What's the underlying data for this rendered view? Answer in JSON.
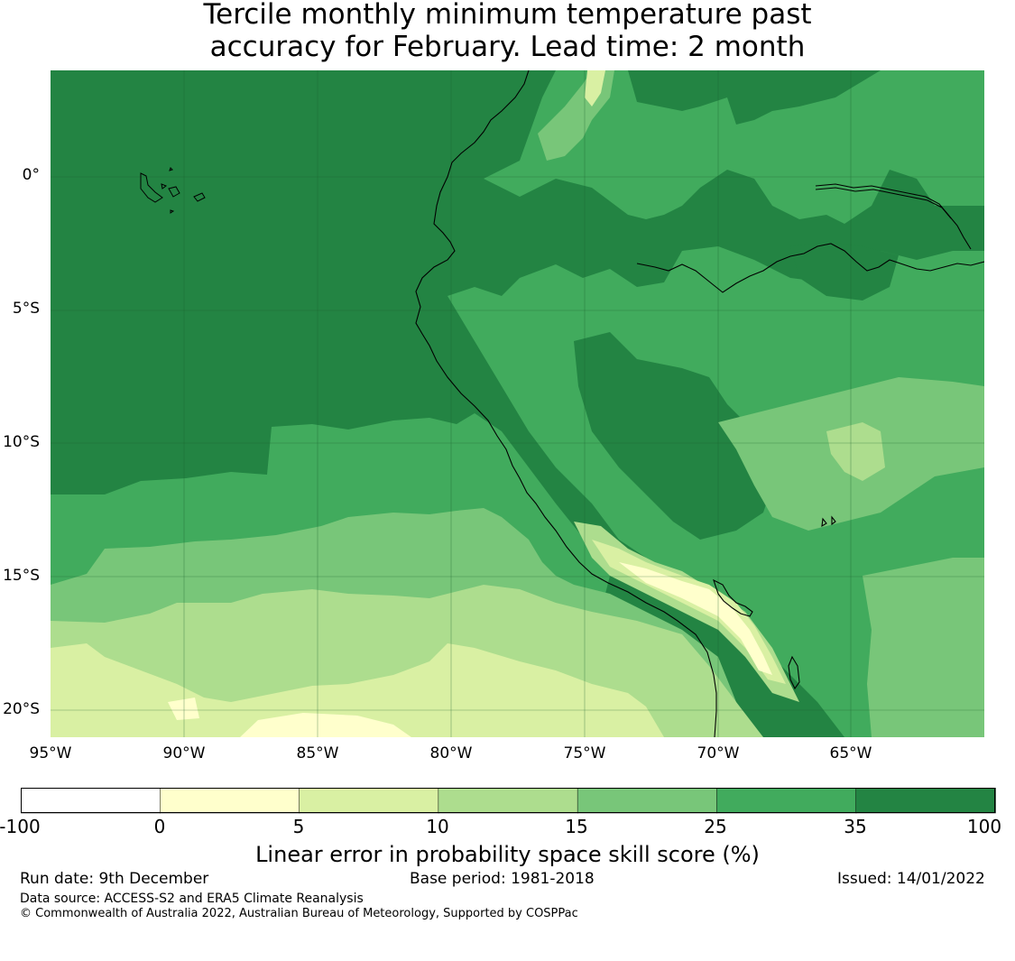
{
  "title": {
    "line1": "Tercile monthly minimum temperature past",
    "line2": "accuracy for February. Lead time: 2 month"
  },
  "map": {
    "lat_labels": [
      "0°",
      "5°S",
      "10°S",
      "15°S",
      "20°S"
    ],
    "lon_labels": [
      "95°W",
      "90°W",
      "85°W",
      "80°W",
      "75°W",
      "70°W",
      "65°W"
    ],
    "lat_range": [
      -21.0,
      4.0
    ],
    "lon_range": [
      -95.0,
      -60.0
    ]
  },
  "colorbar": {
    "title": "Linear error in probability space skill score (%)",
    "bounds": [
      "-100",
      "0",
      "5",
      "10",
      "15",
      "25",
      "35",
      "100"
    ],
    "colors": [
      "#ffffff",
      "#ffffcc",
      "#d9f0a3",
      "#addd8e",
      "#78c679",
      "#41ab5d",
      "#238443"
    ]
  },
  "footer": {
    "run_date": "Run date: 9th December",
    "base_period": "Base period: 1981-2018",
    "issued": "Issued: 14/01/2022",
    "data_source": "Data source: ACCESS-S2 and ERA5 Climate Reanalysis",
    "copyright": "© Commonwealth of Australia 2022, Australian Bureau of Meteorology, Supported by COSPPac"
  }
}
